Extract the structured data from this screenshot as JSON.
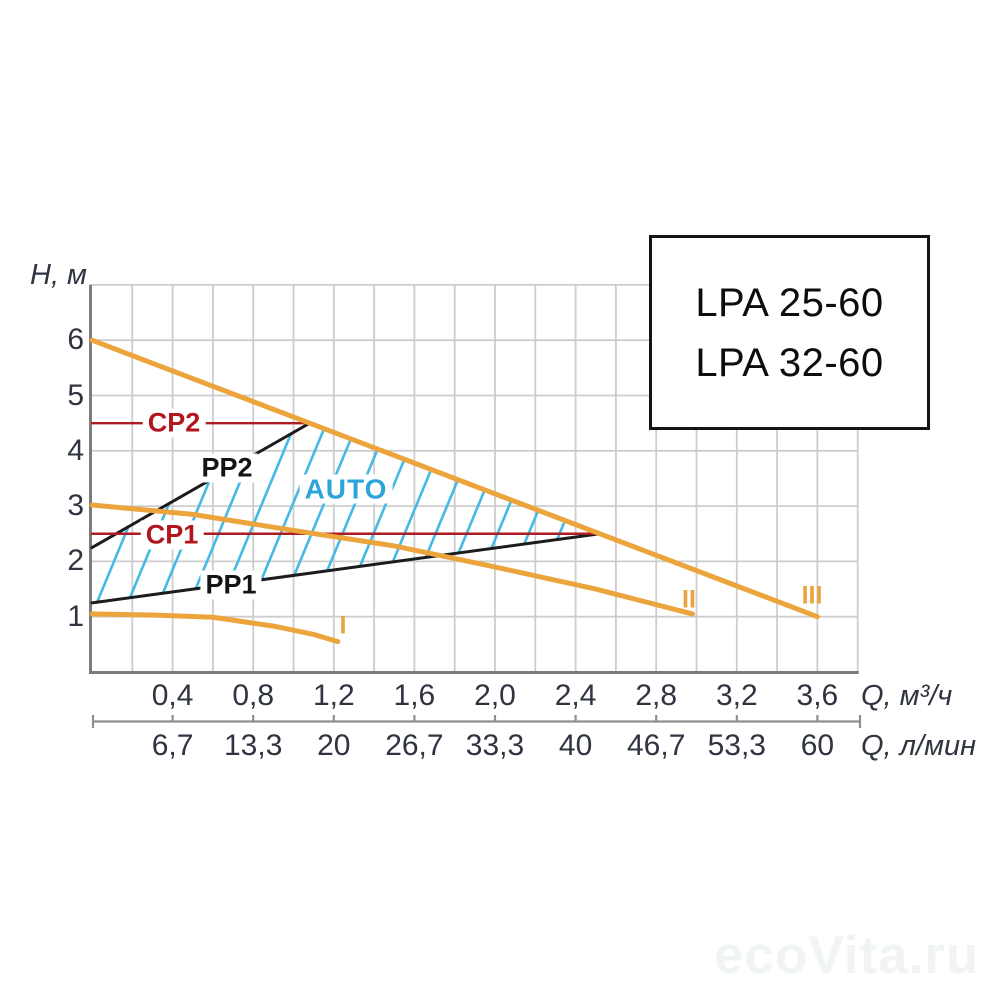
{
  "legend": {
    "models": [
      "LPA 25-60",
      "LPA 32-60"
    ]
  },
  "watermark": "ecoVita.ru",
  "axes": {
    "y_label": "H, м",
    "y_ticks": [
      "6",
      "5",
      "4",
      "3",
      "2",
      "1"
    ],
    "x_primary": {
      "ticks": [
        "0,4",
        "0,8",
        "1,2",
        "1,6",
        "2,0",
        "2,4",
        "2,8",
        "3,2",
        "3,6"
      ],
      "unit": "Q, м³/ч"
    },
    "x_secondary": {
      "ticks": [
        "6,7",
        "13,3",
        "20",
        "26,7",
        "33,3",
        "40",
        "46,7",
        "53,3",
        "60"
      ],
      "unit": "Q, л/мин"
    }
  },
  "labels": {
    "cp2": "CP2",
    "pp2": "PP2",
    "cp1": "CP1",
    "pp1": "PP1",
    "auto": "AUTO",
    "speed1": "I",
    "speed2": "II",
    "speed3": "III"
  },
  "colors": {
    "orange": "#eca43c",
    "black": "#1c1c1c",
    "red": "#ad1b23",
    "hatch": "#45b9e6",
    "grid": "#cdcdcd",
    "axis": "#7c7c7c",
    "ruler": "#8f8f8f"
  },
  "chart_data": {
    "type": "line",
    "title": "Pump head-flow curves LPA 25-60 / LPA 32-60",
    "ylabel": "H, м",
    "xlabel_primary": "Q, м³/ч",
    "xlabel_secondary": "Q, л/мин",
    "xlim": [
      0,
      3.8
    ],
    "ylim": [
      0,
      7
    ],
    "grid": true,
    "grid_step_x": 0.2,
    "grid_step_y": 1,
    "x_tick_values": [
      0.4,
      0.8,
      1.2,
      1.6,
      2.0,
      2.4,
      2.8,
      3.2,
      3.6
    ],
    "x_tick_values_lmin": [
      6.7,
      13.3,
      20,
      26.7,
      33.3,
      40,
      46.7,
      53.3,
      60
    ],
    "y_tick_values": [
      6,
      5,
      4,
      3,
      2,
      1
    ],
    "series": [
      {
        "name": "PP2",
        "style": "black",
        "points": [
          [
            0,
            2.25
          ],
          [
            1.08,
            4.5
          ]
        ]
      },
      {
        "name": "PP1",
        "style": "black",
        "points": [
          [
            0,
            1.25
          ],
          [
            2.52,
            2.5
          ]
        ]
      },
      {
        "name": "CP2",
        "style": "red",
        "points": [
          [
            0,
            4.5
          ],
          [
            1.08,
            4.5
          ]
        ]
      },
      {
        "name": "CP1",
        "style": "red",
        "points": [
          [
            0,
            2.5
          ],
          [
            2.52,
            2.5
          ]
        ]
      },
      {
        "name": "speed-III",
        "style": "orange",
        "points": [
          [
            0,
            6
          ],
          [
            3.6,
            1
          ]
        ]
      },
      {
        "name": "speed-II",
        "style": "orange",
        "points": [
          [
            0,
            3.02
          ],
          [
            0.5,
            2.85
          ],
          [
            1.0,
            2.56
          ],
          [
            1.5,
            2.28
          ],
          [
            2.0,
            1.9
          ],
          [
            2.5,
            1.5
          ],
          [
            2.98,
            1.05
          ]
        ]
      },
      {
        "name": "speed-I",
        "style": "orange",
        "points": [
          [
            0,
            1.05
          ],
          [
            0.3,
            1.03
          ],
          [
            0.6,
            0.99
          ],
          [
            0.9,
            0.83
          ],
          [
            1.1,
            0.68
          ],
          [
            1.22,
            0.55
          ]
        ]
      }
    ],
    "auto_region": [
      [
        0,
        1.25
      ],
      [
        0,
        2.25
      ],
      [
        1.08,
        4.5
      ],
      [
        2.52,
        2.5
      ]
    ]
  }
}
